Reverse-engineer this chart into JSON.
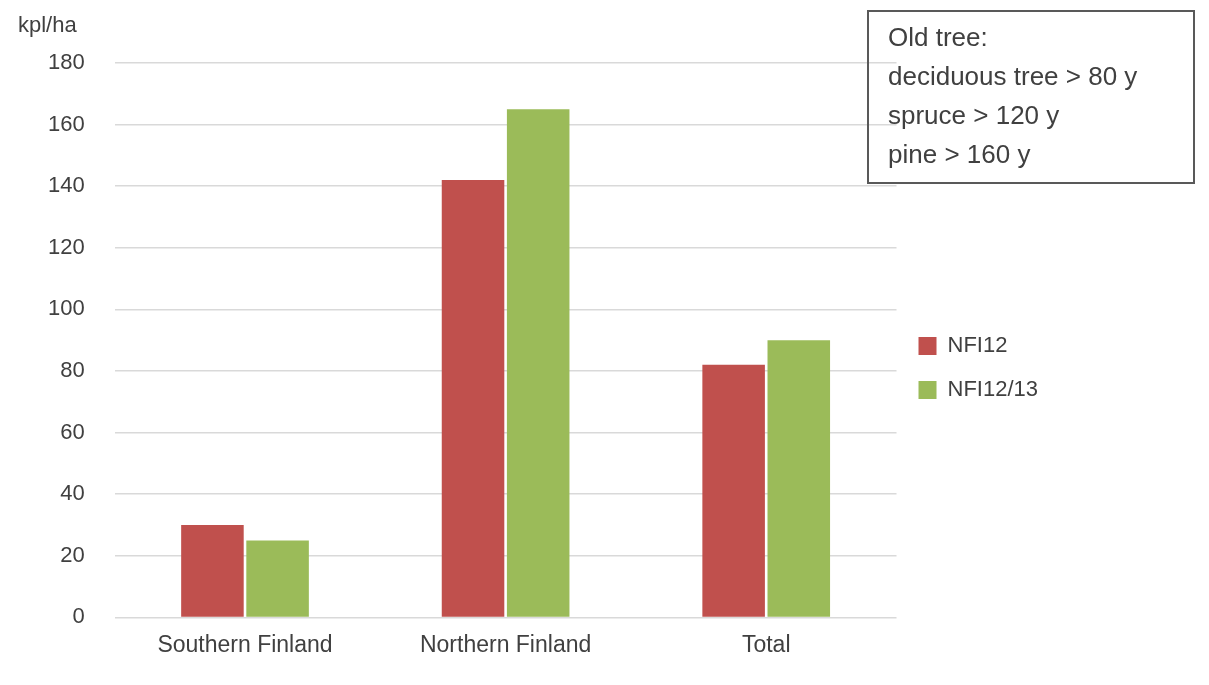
{
  "chart_data": {
    "type": "bar",
    "ylabel": "kpl/ha",
    "categories": [
      "Southern Finland",
      "Northern Finland",
      "Total"
    ],
    "series": [
      {
        "name": "NFI12",
        "color": "#c0504d",
        "values": [
          30,
          142,
          82
        ]
      },
      {
        "name": "NFI12/13",
        "color": "#9bbb59",
        "values": [
          25,
          165,
          90
        ]
      }
    ],
    "ylim": [
      0,
      180
    ],
    "yticks": [
      0,
      20,
      40,
      60,
      80,
      100,
      120,
      140,
      160,
      180
    ],
    "grid": "y",
    "legend": "right",
    "annotations": [
      "Old tree:",
      "deciduous tree > 80 y",
      "spruce > 120 y",
      "pine > 160 y"
    ]
  }
}
